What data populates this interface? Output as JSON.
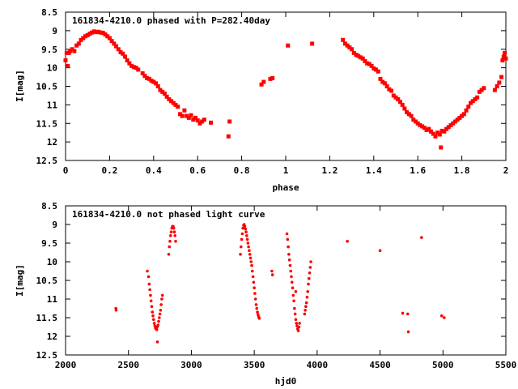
{
  "chart_data": [
    {
      "type": "scatter",
      "title": "161834-4210.0 phased with P=282.40day",
      "xlabel": "phase",
      "ylabel": "I[mag]",
      "xlim": [
        0,
        2
      ],
      "ylim": [
        12.5,
        8.5
      ],
      "y_inverted": true,
      "xticks": [
        "0",
        "0.2",
        "0.4",
        "0.6",
        "0.8",
        "1",
        "1.2",
        "1.4",
        "1.6",
        "1.8",
        "2"
      ],
      "xtick_values": [
        0,
        0.2,
        0.4,
        0.6,
        0.8,
        1.0,
        1.2,
        1.4,
        1.6,
        1.8,
        2.0
      ],
      "yticks": [
        "8.5",
        "9",
        "9.5",
        "10",
        "10.5",
        "11",
        "11.5",
        "12",
        "12.5"
      ],
      "ytick_values": [
        8.5,
        9,
        9.5,
        10,
        10.5,
        11,
        11.5,
        12,
        12.5
      ],
      "grid": false,
      "marker_color": "#ff0000",
      "series": [
        {
          "points": [
            [
              0.0,
              9.8
            ],
            [
              0.005,
              9.6
            ],
            [
              0.01,
              9.95
            ],
            [
              0.015,
              9.6
            ],
            [
              0.02,
              9.55
            ],
            [
              0.03,
              9.5
            ],
            [
              0.04,
              9.55
            ],
            [
              0.05,
              9.4
            ],
            [
              0.06,
              9.35
            ],
            [
              0.07,
              9.25
            ],
            [
              0.08,
              9.2
            ],
            [
              0.09,
              9.15
            ],
            [
              0.1,
              9.12
            ],
            [
              0.11,
              9.08
            ],
            [
              0.12,
              9.05
            ],
            [
              0.13,
              9.02
            ],
            [
              0.14,
              9.04
            ],
            [
              0.15,
              9.03
            ],
            [
              0.16,
              9.05
            ],
            [
              0.17,
              9.06
            ],
            [
              0.18,
              9.1
            ],
            [
              0.19,
              9.15
            ],
            [
              0.2,
              9.2
            ],
            [
              0.21,
              9.28
            ],
            [
              0.22,
              9.35
            ],
            [
              0.23,
              9.42
            ],
            [
              0.24,
              9.5
            ],
            [
              0.25,
              9.58
            ],
            [
              0.26,
              9.62
            ],
            [
              0.27,
              9.7
            ],
            [
              0.28,
              9.8
            ],
            [
              0.29,
              9.88
            ],
            [
              0.3,
              9.95
            ],
            [
              0.31,
              9.98
            ],
            [
              0.32,
              10.0
            ],
            [
              0.33,
              10.05
            ],
            [
              0.35,
              10.15
            ],
            [
              0.36,
              10.22
            ],
            [
              0.37,
              10.28
            ],
            [
              0.38,
              10.3
            ],
            [
              0.39,
              10.35
            ],
            [
              0.4,
              10.38
            ],
            [
              0.41,
              10.42
            ],
            [
              0.42,
              10.5
            ],
            [
              0.43,
              10.6
            ],
            [
              0.44,
              10.65
            ],
            [
              0.45,
              10.7
            ],
            [
              0.46,
              10.78
            ],
            [
              0.47,
              10.85
            ],
            [
              0.48,
              10.9
            ],
            [
              0.49,
              10.95
            ],
            [
              0.5,
              11.0
            ],
            [
              0.51,
              11.05
            ],
            [
              0.52,
              11.25
            ],
            [
              0.53,
              11.3
            ],
            [
              0.54,
              11.15
            ],
            [
              0.55,
              11.3
            ],
            [
              0.56,
              11.35
            ],
            [
              0.57,
              11.28
            ],
            [
              0.58,
              11.4
            ],
            [
              0.59,
              11.35
            ],
            [
              0.6,
              11.42
            ],
            [
              0.61,
              11.5
            ],
            [
              0.62,
              11.45
            ],
            [
              0.63,
              11.4
            ],
            [
              0.66,
              11.48
            ],
            [
              0.74,
              11.85
            ],
            [
              0.745,
              11.45
            ],
            [
              0.89,
              10.45
            ],
            [
              0.9,
              10.38
            ],
            [
              0.93,
              10.3
            ],
            [
              0.94,
              10.28
            ],
            [
              1.01,
              9.4
            ],
            [
              1.12,
              9.35
            ],
            [
              1.26,
              9.25
            ],
            [
              1.27,
              9.35
            ],
            [
              1.28,
              9.4
            ],
            [
              1.29,
              9.45
            ],
            [
              1.3,
              9.5
            ],
            [
              1.31,
              9.6
            ],
            [
              1.32,
              9.65
            ],
            [
              1.33,
              9.68
            ],
            [
              1.34,
              9.72
            ],
            [
              1.35,
              9.75
            ],
            [
              1.36,
              9.82
            ],
            [
              1.37,
              9.88
            ],
            [
              1.38,
              9.9
            ],
            [
              1.39,
              9.95
            ],
            [
              1.4,
              10.02
            ],
            [
              1.41,
              10.05
            ],
            [
              1.42,
              10.1
            ],
            [
              1.43,
              10.3
            ],
            [
              1.44,
              10.38
            ],
            [
              1.45,
              10.42
            ],
            [
              1.46,
              10.5
            ],
            [
              1.47,
              10.58
            ],
            [
              1.48,
              10.62
            ],
            [
              1.49,
              10.75
            ],
            [
              1.5,
              10.8
            ],
            [
              1.51,
              10.85
            ],
            [
              1.52,
              10.92
            ],
            [
              1.53,
              11.0
            ],
            [
              1.54,
              11.1
            ],
            [
              1.55,
              11.2
            ],
            [
              1.56,
              11.25
            ],
            [
              1.57,
              11.3
            ],
            [
              1.58,
              11.4
            ],
            [
              1.59,
              11.45
            ],
            [
              1.6,
              11.5
            ],
            [
              1.61,
              11.55
            ],
            [
              1.62,
              11.58
            ],
            [
              1.63,
              11.62
            ],
            [
              1.64,
              11.68
            ],
            [
              1.65,
              11.65
            ],
            [
              1.66,
              11.72
            ],
            [
              1.67,
              11.78
            ],
            [
              1.68,
              11.85
            ],
            [
              1.69,
              11.75
            ],
            [
              1.7,
              11.8
            ],
            [
              1.705,
              12.15
            ],
            [
              1.71,
              11.7
            ],
            [
              1.72,
              11.72
            ],
            [
              1.73,
              11.65
            ],
            [
              1.74,
              11.6
            ],
            [
              1.75,
              11.55
            ],
            [
              1.76,
              11.5
            ],
            [
              1.77,
              11.45
            ],
            [
              1.78,
              11.4
            ],
            [
              1.79,
              11.35
            ],
            [
              1.8,
              11.3
            ],
            [
              1.81,
              11.25
            ],
            [
              1.82,
              11.15
            ],
            [
              1.83,
              11.05
            ],
            [
              1.84,
              10.95
            ],
            [
              1.85,
              10.9
            ],
            [
              1.86,
              10.85
            ],
            [
              1.87,
              10.8
            ],
            [
              1.88,
              10.65
            ],
            [
              1.89,
              10.6
            ],
            [
              1.9,
              10.55
            ],
            [
              1.95,
              10.6
            ],
            [
              1.96,
              10.5
            ],
            [
              1.97,
              10.4
            ],
            [
              1.98,
              10.25
            ],
            [
              1.985,
              9.8
            ],
            [
              1.99,
              9.7
            ],
            [
              1.995,
              9.6
            ],
            [
              2.0,
              9.75
            ]
          ]
        }
      ]
    },
    {
      "type": "scatter",
      "title": "161834-4210.0 not phased light curve",
      "xlabel": "hjd0",
      "ylabel": "I[mag]",
      "xlim": [
        2000,
        5500
      ],
      "ylim": [
        12.5,
        8.5
      ],
      "y_inverted": true,
      "xticks": [
        "2000",
        "2500",
        "3000",
        "3500",
        "4000",
        "4500",
        "5000",
        "5500"
      ],
      "xtick_values": [
        2000,
        2500,
        3000,
        3500,
        4000,
        4500,
        5000,
        5500
      ],
      "yticks": [
        "8.5",
        "9",
        "9.5",
        "10",
        "10.5",
        "11",
        "11.5",
        "12",
        "12.5"
      ],
      "ytick_values": [
        8.5,
        9,
        9.5,
        10,
        10.5,
        11,
        11.5,
        12,
        12.5
      ],
      "grid": false,
      "marker_color": "#ff0000",
      "series": [
        {
          "points": [
            [
              2400,
              11.25
            ],
            [
              2402,
              11.3
            ],
            [
              2650,
              10.25
            ],
            [
              2660,
              10.4
            ],
            [
              2665,
              10.6
            ],
            [
              2670,
              10.75
            ],
            [
              2675,
              10.9
            ],
            [
              2680,
              11.05
            ],
            [
              2685,
              11.2
            ],
            [
              2690,
              11.35
            ],
            [
              2695,
              11.45
            ],
            [
              2700,
              11.55
            ],
            [
              2705,
              11.65
            ],
            [
              2710,
              11.72
            ],
            [
              2715,
              11.78
            ],
            [
              2720,
              11.8
            ],
            [
              2725,
              11.82
            ],
            [
              2728,
              11.75
            ],
            [
              2730,
              12.15
            ],
            [
              2735,
              11.7
            ],
            [
              2740,
              11.6
            ],
            [
              2745,
              11.5
            ],
            [
              2750,
              11.4
            ],
            [
              2755,
              11.3
            ],
            [
              2760,
              11.15
            ],
            [
              2765,
              11.0
            ],
            [
              2770,
              10.9
            ],
            [
              2820,
              9.8
            ],
            [
              2825,
              9.6
            ],
            [
              2830,
              9.45
            ],
            [
              2835,
              9.3
            ],
            [
              2840,
              9.2
            ],
            [
              2845,
              9.1
            ],
            [
              2850,
              9.05
            ],
            [
              2855,
              9.05
            ],
            [
              2860,
              9.1
            ],
            [
              2865,
              9.2
            ],
            [
              2870,
              9.3
            ],
            [
              2875,
              9.45
            ],
            [
              3390,
              9.8
            ],
            [
              3395,
              9.6
            ],
            [
              3400,
              9.4
            ],
            [
              3405,
              9.25
            ],
            [
              3410,
              9.1
            ],
            [
              3415,
              9.02
            ],
            [
              3420,
              9.0
            ],
            [
              3425,
              9.05
            ],
            [
              3430,
              9.12
            ],
            [
              3435,
              9.2
            ],
            [
              3440,
              9.3
            ],
            [
              3445,
              9.4
            ],
            [
              3450,
              9.5
            ],
            [
              3455,
              9.6
            ],
            [
              3460,
              9.7
            ],
            [
              3465,
              9.8
            ],
            [
              3470,
              9.9
            ],
            [
              3475,
              10.0
            ],
            [
              3480,
              10.1
            ],
            [
              3485,
              10.25
            ],
            [
              3490,
              10.4
            ],
            [
              3495,
              10.55
            ],
            [
              3500,
              10.7
            ],
            [
              3505,
              10.85
            ],
            [
              3510,
              11.0
            ],
            [
              3515,
              11.15
            ],
            [
              3520,
              11.25
            ],
            [
              3525,
              11.35
            ],
            [
              3530,
              11.42
            ],
            [
              3535,
              11.48
            ],
            [
              3540,
              11.52
            ],
            [
              3640,
              10.25
            ],
            [
              3645,
              10.35
            ],
            [
              3760,
              9.25
            ],
            [
              3765,
              9.4
            ],
            [
              3770,
              9.6
            ],
            [
              3775,
              9.8
            ],
            [
              3780,
              9.95
            ],
            [
              3785,
              10.1
            ],
            [
              3790,
              10.25
            ],
            [
              3795,
              10.4
            ],
            [
              3800,
              10.55
            ],
            [
              3805,
              10.7
            ],
            [
              3810,
              10.9
            ],
            [
              3815,
              11.05
            ],
            [
              3820,
              11.25
            ],
            [
              3825,
              11.4
            ],
            [
              3830,
              11.55
            ],
            [
              3835,
              11.65
            ],
            [
              3840,
              11.72
            ],
            [
              3845,
              11.8
            ],
            [
              3850,
              11.85
            ],
            [
              3855,
              11.75
            ],
            [
              3860,
              11.65
            ],
            [
              3830,
              10.8
            ],
            [
              3900,
              11.4
            ],
            [
              3905,
              11.3
            ],
            [
              3910,
              11.2
            ],
            [
              3915,
              11.1
            ],
            [
              3920,
              10.95
            ],
            [
              3925,
              10.8
            ],
            [
              3930,
              10.6
            ],
            [
              3935,
              10.45
            ],
            [
              3940,
              10.3
            ],
            [
              3945,
              10.15
            ],
            [
              3950,
              10.0
            ],
            [
              4240,
              9.45
            ],
            [
              4500,
              9.7
            ],
            [
              4680,
              11.38
            ],
            [
              4720,
              11.4
            ],
            [
              4725,
              11.88
            ],
            [
              4830,
              9.35
            ],
            [
              4990,
              11.45
            ],
            [
              5010,
              11.5
            ]
          ]
        }
      ]
    }
  ]
}
